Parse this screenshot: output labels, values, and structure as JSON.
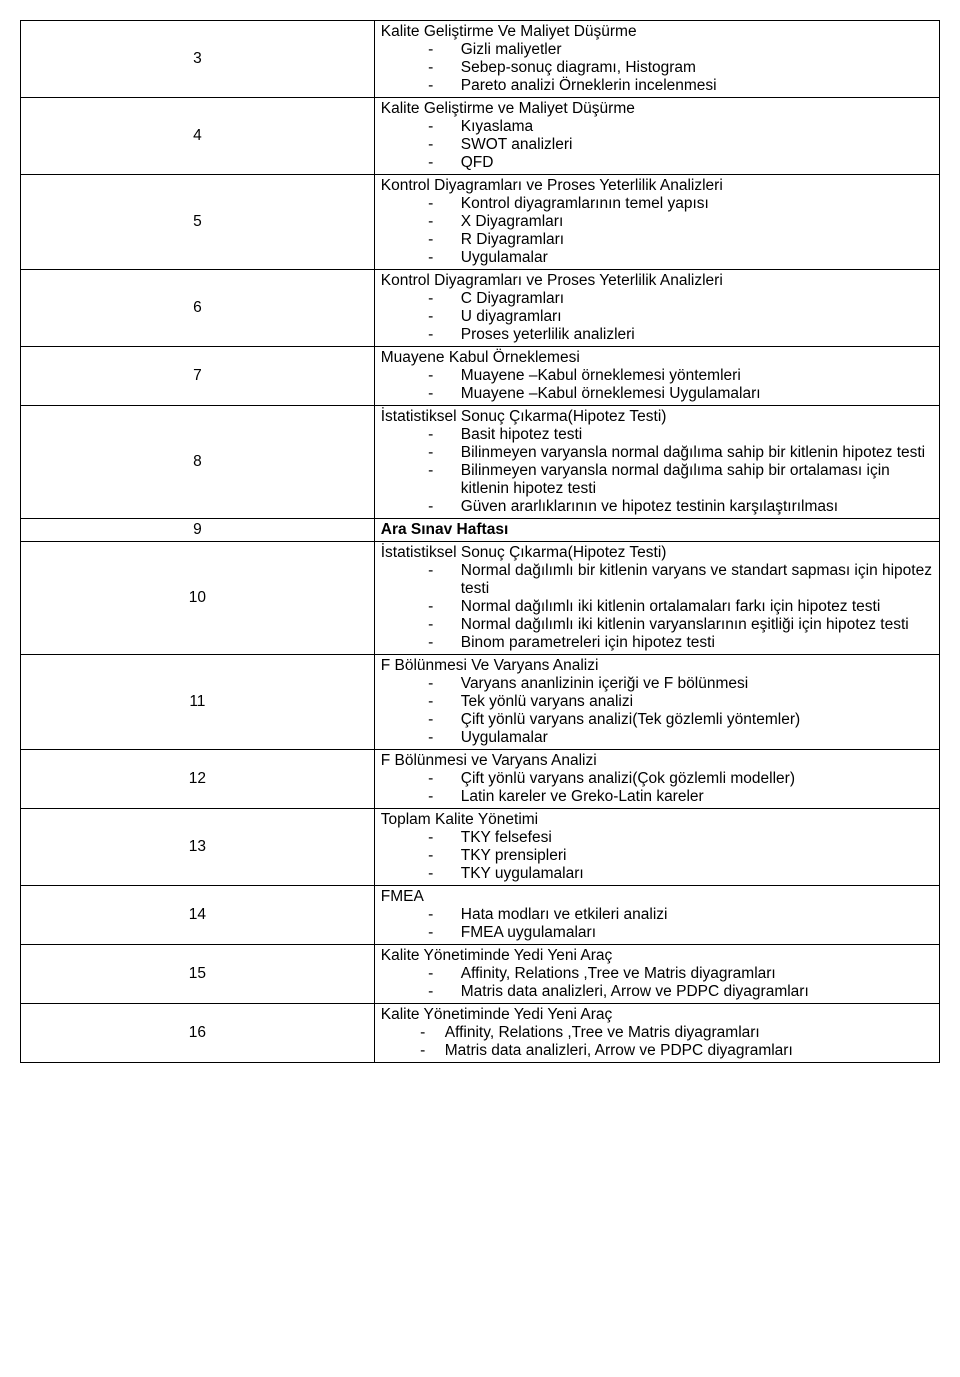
{
  "rows": [
    {
      "num": "3",
      "title": "Kalite Geliştirme Ve Maliyet Düşürme",
      "items": [
        "Gizli maliyetler",
        "Sebep-sonuç diagramı, Histogram",
        "Pareto analizi   Örneklerin incelenmesi"
      ]
    },
    {
      "num": "4",
      "title": "Kalite Geliştirme ve Maliyet Düşürme",
      "items": [
        "Kıyaslama",
        "SWOT analizleri",
        "QFD"
      ]
    },
    {
      "num": "5",
      "title": "Kontrol Diyagramları ve Proses Yeterlilik Analizleri",
      "items": [
        "Kontrol diyagramlarının temel yapısı",
        "X Diyagramları",
        "R Diyagramları",
        "Uygulamalar"
      ]
    },
    {
      "num": "6",
      "title": "Kontrol Diyagramları ve Proses Yeterlilik Analizleri",
      "items": [
        "C Diyagramları",
        "U diyagramları",
        "Proses yeterlilik analizleri"
      ]
    },
    {
      "num": "7",
      "title": "Muayene Kabul Örneklemesi",
      "items": [
        "Muayene –Kabul örneklemesi yöntemleri",
        "Muayene –Kabul örneklemesi Uygulamaları"
      ]
    },
    {
      "num": "8",
      "title": "İstatistiksel Sonuç Çıkarma(Hipotez Testi)",
      "items": [
        "Basit hipotez testi",
        "Bilinmeyen varyansla normal dağılıma sahip bir kitlenin hipotez testi",
        "Bilinmeyen varyansla normal dağılıma sahip bir ortalaması için kitlenin hipotez testi",
        "Güven ararlıklarının ve hipotez testinin karşılaştırılması"
      ]
    },
    {
      "num": "9",
      "title": "Ara Sınav Haftası",
      "bold_title": true,
      "items": []
    },
    {
      "num": "10",
      "title": "İstatistiksel Sonuç Çıkarma(Hipotez Testi)",
      "items": [
        "Normal dağılımlı bir kitlenin varyans ve standart sapması için hipotez testi",
        "Normal dağılımlı iki kitlenin ortalamaları farkı için hipotez testi",
        "Normal dağılımlı iki kitlenin varyanslarının eşitliği için hipotez testi",
        "Binom parametreleri için hipotez testi"
      ]
    },
    {
      "num": "11",
      "title": "F Bölünmesi Ve Varyans Analizi",
      "items": [
        "Varyans ananlizinin içeriği ve F bölünmesi",
        "Tek yönlü varyans analizi",
        "Çift yönlü varyans analizi(Tek gözlemli yöntemler)",
        "Uygulamalar"
      ]
    },
    {
      "num": "12",
      "title": "F Bölünmesi ve Varyans Analizi",
      "items": [
        "Çift yönlü varyans analizi(Çok gözlemli modeller)",
        "Latin kareler ve Greko-Latin kareler"
      ]
    },
    {
      "num": "13",
      "title": "Toplam Kalite Yönetimi",
      "items": [
        "TKY felsefesi",
        "TKY prensipleri",
        "TKY uygulamaları"
      ]
    },
    {
      "num": "14",
      "title": "FMEA",
      "items": [
        "Hata modları ve etkileri analizi",
        "FMEA uygulamaları"
      ]
    },
    {
      "num": "15",
      "title": "Kalite Yönetiminde Yedi Yeni Araç",
      "items": [
        "Affinity, Relations ,Tree ve Matris diyagramları",
        "Matris data analizleri, Arrow ve PDPC diyagramları"
      ]
    },
    {
      "num": "16",
      "title": "Kalite Yönetiminde Yedi Yeni Araç",
      "dash_style": "dash2",
      "items": [
        "Affinity, Relations ,Tree ve Matris diyagramları",
        "Matris data analizleri, Arrow ve PDPC diyagramları"
      ]
    }
  ]
}
